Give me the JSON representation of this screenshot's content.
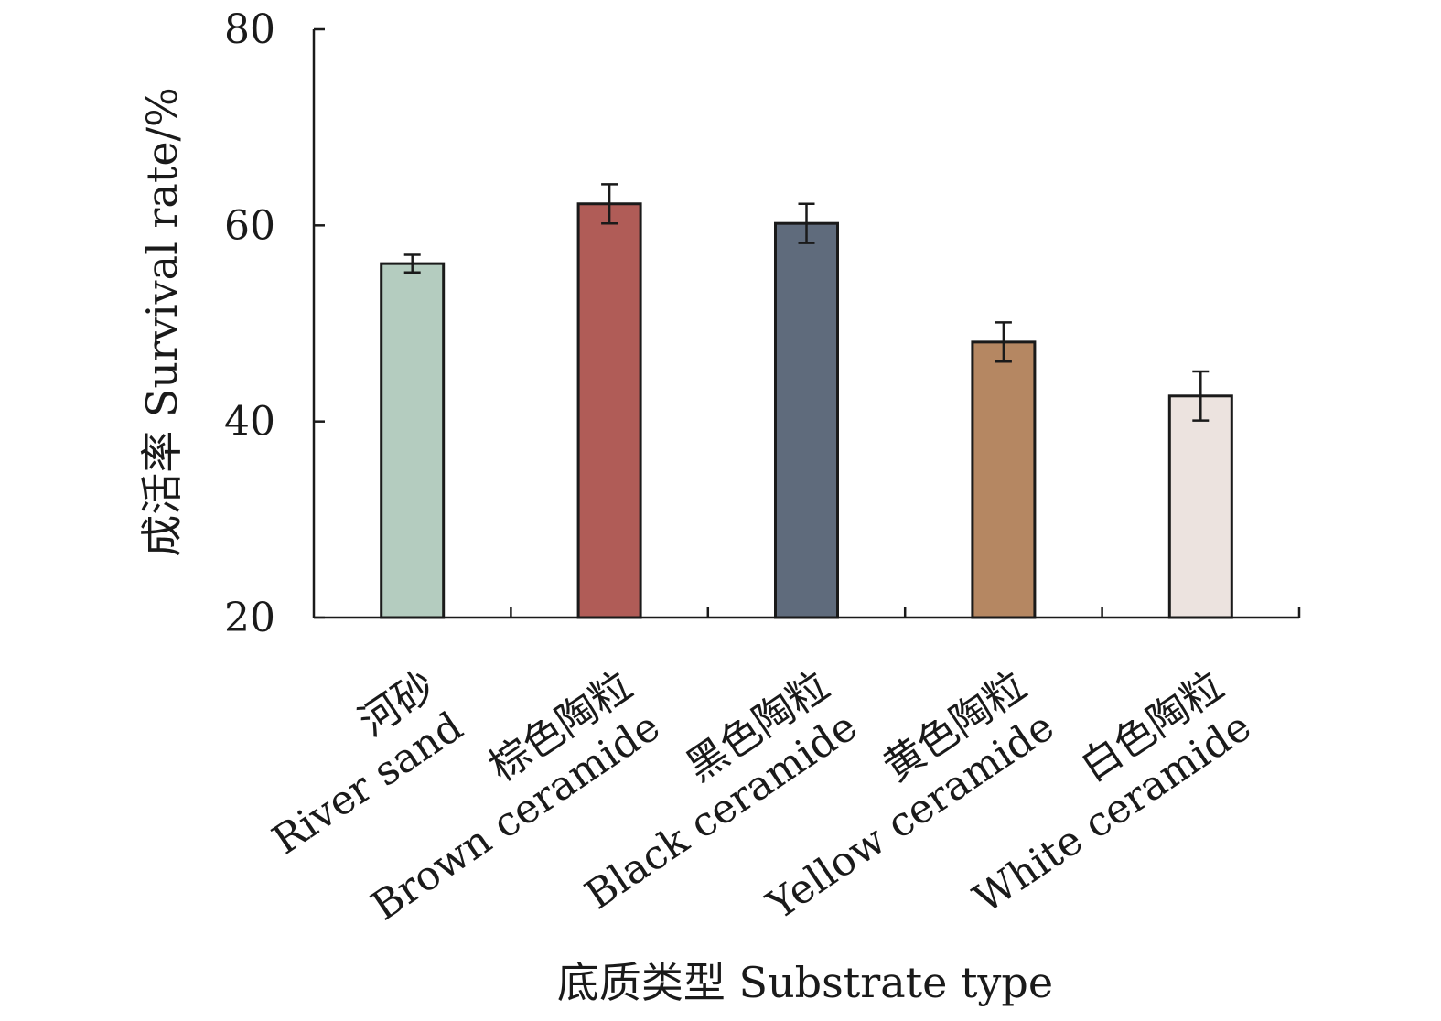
{
  "chart_data": {
    "type": "bar",
    "ylabel": "成活率 Survival  rate/%",
    "xlabel": "底质类型 Substrate type",
    "ylim": [
      20,
      80
    ],
    "yticks": [
      "20",
      "40",
      "60",
      "80"
    ],
    "categories": [
      {
        "zh": "河砂",
        "en": "River sand"
      },
      {
        "zh": "棕色陶粒",
        "en": "Brown ceramide"
      },
      {
        "zh": "黑色陶粒",
        "en": "Black ceramide"
      },
      {
        "zh": "黄色陶粒",
        "en": "Yellow ceramide"
      },
      {
        "zh": "白色陶粒",
        "en": "White ceramide"
      }
    ],
    "values": [
      56.1,
      62.2,
      60.2,
      48.1,
      42.6
    ],
    "errors": [
      0.9,
      2.0,
      2.0,
      2.0,
      2.5
    ],
    "colors": [
      "#b4ccbf",
      "#b05c57",
      "#5f6b7c",
      "#b58762",
      "#ece3df"
    ],
    "grid": false,
    "legend": "none"
  }
}
